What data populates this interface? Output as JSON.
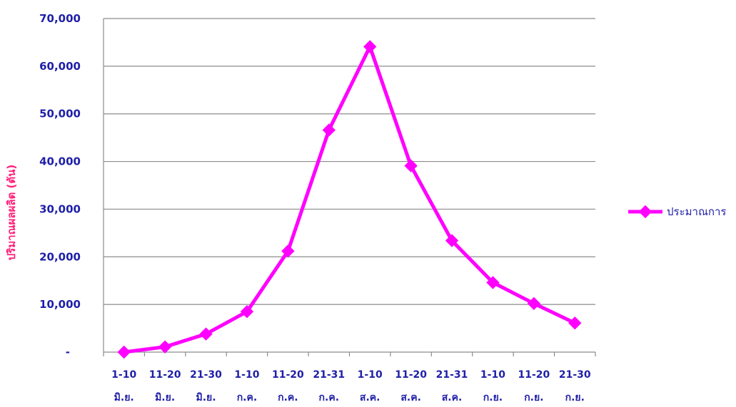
{
  "chart_data": {
    "type": "line",
    "categories": [
      [
        "1-10",
        "มิ.ย."
      ],
      [
        "11-20",
        "มิ.ย."
      ],
      [
        "21-30",
        "มิ.ย."
      ],
      [
        "1-10",
        "ก.ค."
      ],
      [
        "11-20",
        "ก.ค."
      ],
      [
        "21-31",
        "ก.ค."
      ],
      [
        "1-10",
        "ส.ค."
      ],
      [
        "11-20",
        "ส.ค."
      ],
      [
        "21-31",
        "ส.ค."
      ],
      [
        "1-10",
        "ก.ย."
      ],
      [
        "11-20",
        "ก.ย."
      ],
      [
        "21-30",
        "ก.ย."
      ]
    ],
    "series": [
      {
        "name": "ประมาณการ",
        "values": [
          0,
          1100,
          3800,
          8500,
          21200,
          46600,
          64100,
          39100,
          23400,
          14600,
          10200,
          6100
        ],
        "color": "#ff00ff"
      }
    ],
    "title": "",
    "xlabel": "",
    "ylabel": "ปริมาณผลผลิต (ตัน)",
    "ylabel_color": "#ff1f7a",
    "ylim": [
      0,
      70000
    ],
    "yticks": [
      {
        "value": 0,
        "label": "-"
      },
      {
        "value": 10000,
        "label": "10,000"
      },
      {
        "value": 20000,
        "label": "20,000"
      },
      {
        "value": 30000,
        "label": "30,000"
      },
      {
        "value": 40000,
        "label": "40,000"
      },
      {
        "value": 50000,
        "label": "50,000"
      },
      {
        "value": 60000,
        "label": "60,000"
      },
      {
        "value": 70000,
        "label": "70,000"
      }
    ],
    "grid": true,
    "legend": "right"
  }
}
